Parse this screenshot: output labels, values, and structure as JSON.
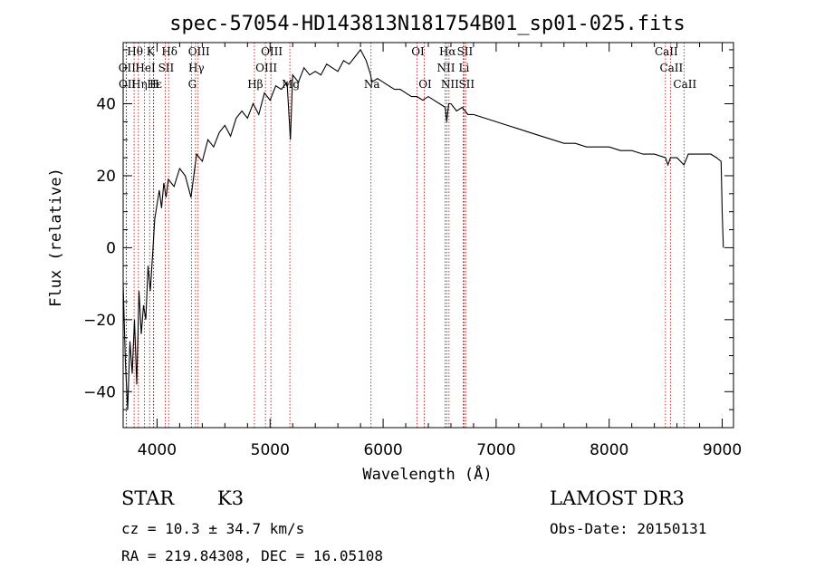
{
  "chart_data": {
    "type": "line",
    "title": "spec-57054-HD143813N181754B01_sp01-025.fits",
    "xlabel": "Wavelength (Å)",
    "ylabel": "Flux (relative)",
    "xlim": [
      3700,
      9100
    ],
    "ylim": [
      -50,
      57
    ],
    "xticks": [
      4000,
      5000,
      6000,
      7000,
      8000,
      9000
    ],
    "yticks": [
      -40,
      -20,
      0,
      20,
      40
    ],
    "series": [
      {
        "name": "spectrum",
        "x": [
          3700,
          3720,
          3740,
          3760,
          3780,
          3800,
          3820,
          3840,
          3860,
          3880,
          3900,
          3920,
          3940,
          3960,
          3980,
          4000,
          4020,
          4040,
          4060,
          4080,
          4100,
          4150,
          4200,
          4250,
          4300,
          4350,
          4400,
          4450,
          4500,
          4550,
          4600,
          4650,
          4700,
          4750,
          4800,
          4850,
          4900,
          4950,
          5000,
          5050,
          5100,
          5150,
          5180,
          5200,
          5250,
          5300,
          5350,
          5400,
          5450,
          5500,
          5550,
          5600,
          5650,
          5700,
          5750,
          5800,
          5850,
          5890,
          5900,
          5950,
          6000,
          6050,
          6100,
          6150,
          6200,
          6250,
          6300,
          6350,
          6400,
          6450,
          6500,
          6550,
          6563,
          6580,
          6600,
          6650,
          6700,
          6750,
          6800,
          6900,
          7000,
          7100,
          7200,
          7300,
          7400,
          7500,
          7600,
          7700,
          7800,
          7900,
          8000,
          8100,
          8200,
          8300,
          8400,
          8498,
          8520,
          8542,
          8600,
          8662,
          8700,
          8800,
          8900,
          8950,
          8990,
          9000,
          9010
        ],
        "y": [
          -10,
          -32,
          -45,
          -26,
          -35,
          -20,
          -38,
          -12,
          -24,
          -16,
          -20,
          -5,
          -12,
          -2,
          8,
          12,
          16,
          11,
          18,
          14,
          19,
          17,
          22,
          20,
          14,
          26,
          24,
          30,
          28,
          32,
          34,
          31,
          36,
          38,
          36,
          40,
          37,
          43,
          41,
          45,
          44,
          46,
          30,
          48,
          46,
          50,
          48,
          49,
          48,
          51,
          50,
          49,
          52,
          51,
          53,
          55,
          52,
          48,
          46,
          47,
          46,
          45,
          44,
          44,
          43,
          42,
          42,
          41,
          42,
          41,
          40,
          39,
          35,
          40,
          40,
          38,
          39,
          37,
          37,
          36,
          35,
          34,
          33,
          32,
          31,
          30,
          29,
          29,
          28,
          28,
          28,
          27,
          27,
          26,
          26,
          25,
          23,
          25,
          25,
          23,
          26,
          26,
          26,
          25,
          24,
          10,
          0
        ]
      }
    ],
    "lines": [
      {
        "name": "Hθ",
        "wave": 3797,
        "row": 0
      },
      {
        "name": "K",
        "wave": 3934,
        "row": 0
      },
      {
        "name": "Hδ",
        "wave": 4102,
        "row": 0
      },
      {
        "name": "OIII",
        "wave": 4363,
        "row": 0
      },
      {
        "name": "OIII",
        "wave": 5007,
        "row": 0
      },
      {
        "name": "OI",
        "wave": 6300,
        "row": 0
      },
      {
        "name": "Hα",
        "wave": 6563,
        "row": 0
      },
      {
        "name": "SII",
        "wave": 6716,
        "row": 0
      },
      {
        "name": "CaII",
        "wave": 8498,
        "row": 0
      },
      {
        "name": "OII",
        "wave": 3727,
        "row": 1
      },
      {
        "name": "HeI",
        "wave": 3889,
        "row": 1
      },
      {
        "name": "SII",
        "wave": 4072,
        "row": 1
      },
      {
        "name": "Hγ",
        "wave": 4340,
        "row": 1
      },
      {
        "name": "OIII",
        "wave": 4959,
        "row": 1
      },
      {
        "name": "NII",
        "wave": 6548,
        "row": 1
      },
      {
        "name": "Li",
        "wave": 6708,
        "row": 1
      },
      {
        "name": "CaII",
        "wave": 8542,
        "row": 1
      },
      {
        "name": "OII",
        "wave": 3729,
        "row": 2
      },
      {
        "name": "Hε",
        "wave": 3970,
        "row": 2
      },
      {
        "name": "Hη",
        "wave": 3835,
        "row": 2
      },
      {
        "name": "H",
        "wave": 3968,
        "row": 2
      },
      {
        "name": "G",
        "wave": 4304,
        "row": 2
      },
      {
        "name": "Hβ",
        "wave": 4861,
        "row": 2
      },
      {
        "name": "Mg",
        "wave": 5175,
        "row": 2
      },
      {
        "name": "Na",
        "wave": 5893,
        "row": 2
      },
      {
        "name": "OI",
        "wave": 6364,
        "row": 2
      },
      {
        "name": "NII",
        "wave": 6583,
        "row": 2
      },
      {
        "name": "SII",
        "wave": 6731,
        "row": 2
      },
      {
        "name": "CaII",
        "wave": 8662,
        "row": 2
      }
    ]
  },
  "info": {
    "class": "STAR",
    "subclass": "K3",
    "survey": "LAMOST DR3",
    "cz": "cz = 10.3 ± 34.7 km/s",
    "obs_date": "Obs-Date: 20150131",
    "radec": "RA = 219.84308, DEC =  16.05108"
  },
  "colors": {
    "line_marker": "#c00000",
    "spectrum": "#000000"
  }
}
